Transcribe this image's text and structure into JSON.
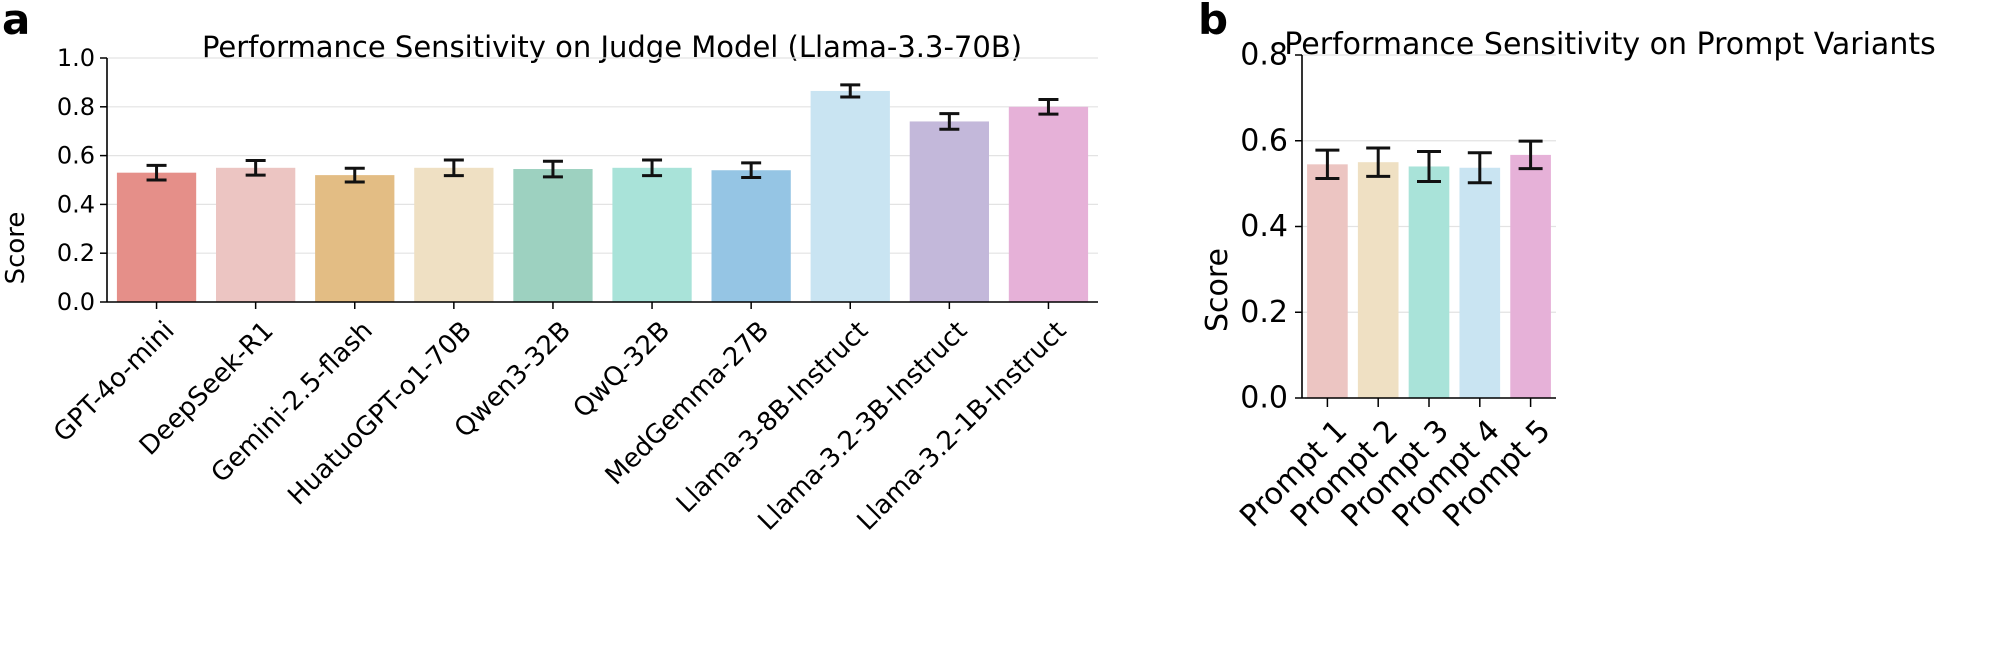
{
  "figure": {
    "panel_labels": [
      "a",
      "b"
    ]
  },
  "chart_data": [
    {
      "type": "bar",
      "panel": "a",
      "title": "Performance Sensitivity on Judge Model (Llama-3.3-70B)",
      "xlabel": "",
      "ylabel": "Score",
      "ylim": [
        0,
        1.0
      ],
      "yticks": [
        0.0,
        0.2,
        0.4,
        0.6,
        0.8,
        1.0
      ],
      "ytick_labels": [
        "0.0",
        "0.2",
        "0.4",
        "0.6",
        "0.8",
        "1.0"
      ],
      "grid": true,
      "categories": [
        "GPT-4o-mini",
        "DeepSeek-R1",
        "Gemini-2.5-flash",
        "HuatuoGPT-o1-70B",
        "Qwen3-32B",
        "QwQ-32B",
        "MedGemma-27B",
        "Llama-3-8B-Instruct",
        "Llama-3.2-3B-Instruct",
        "Llama-3.2-1B-Instruct"
      ],
      "values": [
        0.53,
        0.55,
        0.52,
        0.55,
        0.545,
        0.55,
        0.54,
        0.865,
        0.74,
        0.8
      ],
      "errors": [
        0.03,
        0.03,
        0.028,
        0.032,
        0.032,
        0.032,
        0.03,
        0.025,
        0.032,
        0.03
      ],
      "colors": [
        "#e58f89",
        "#ecc5c2",
        "#e3bd84",
        "#efe0c3",
        "#9dd1c0",
        "#a9e3d9",
        "#95c5e4",
        "#c9e4f2",
        "#c3b8da",
        "#e6b1d8"
      ]
    },
    {
      "type": "bar",
      "panel": "b",
      "title": "Performance Sensitivity on Prompt Variants",
      "xlabel": "",
      "ylabel": "Score",
      "ylim": [
        0,
        0.8
      ],
      "yticks": [
        0.0,
        0.2,
        0.4,
        0.6,
        0.8
      ],
      "ytick_labels": [
        "0.0",
        "0.2",
        "0.4",
        "0.6",
        "0.8"
      ],
      "grid": true,
      "categories": [
        "Prompt 1",
        "Prompt 2",
        "Prompt 3",
        "Prompt 4",
        "Prompt 5"
      ],
      "values": [
        0.545,
        0.55,
        0.54,
        0.537,
        0.567
      ],
      "errors": [
        0.033,
        0.033,
        0.035,
        0.035,
        0.032
      ],
      "colors": [
        "#ecc5c2",
        "#efe0c3",
        "#a9e3d9",
        "#c9e4f2",
        "#e6b1d8"
      ]
    }
  ]
}
